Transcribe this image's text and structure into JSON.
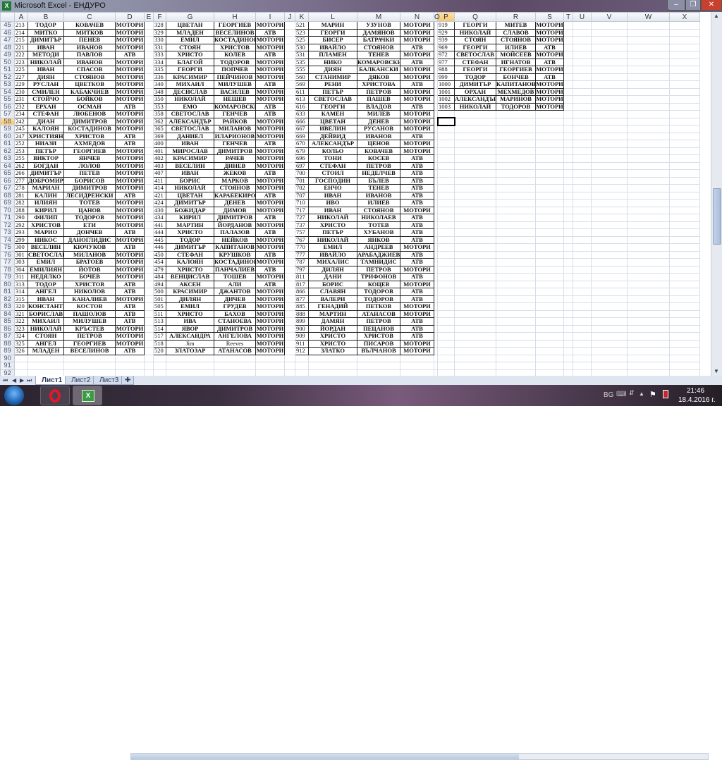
{
  "window": {
    "app_icon": "excel-icon",
    "title": "Microsoft Excel - ЕНДУРО",
    "minimize": "–",
    "restore": "❐",
    "close": "✕"
  },
  "sheet": {
    "columns": [
      "A",
      "B",
      "C",
      "D",
      "E",
      "F",
      "G",
      "H",
      "I",
      "J",
      "K",
      "L",
      "M",
      "N",
      "O",
      "P",
      "Q",
      "R",
      "S",
      "T",
      "U",
      "V",
      "W",
      "X"
    ],
    "first_row": 45,
    "last_row": 92,
    "selected_cell": "P58",
    "groups": [
      {
        "columns": [
          "A",
          "B",
          "C",
          "D"
        ],
        "rows": [
          [
            "213",
            "ТОДОР",
            "КОВАЧЕВ",
            "МОТОРИ"
          ],
          [
            "214",
            "МИТКО",
            "МИТКОВ",
            "МОТОРИ"
          ],
          [
            "215",
            "ДИМИТЪР",
            "ПЕНЕВ",
            "МОТОРИ"
          ],
          [
            "221",
            "ИВАН",
            "ИВАНОВ",
            "МОТОРИ"
          ],
          [
            "222",
            "МЕТОДИ",
            "ПАВЛОВ",
            "АТВ"
          ],
          [
            "223",
            "НИКОЛАЙ",
            "ИВАНОВ",
            "МОТОРИ"
          ],
          [
            "225",
            "ИВАН",
            "СПАСОВ",
            "МОТОРИ"
          ],
          [
            "227",
            "ДИЯН",
            "СТОЯНОВ",
            "МОТОРИ"
          ],
          [
            "229",
            "РУСЛАН",
            "ЦВЕТКОВ",
            "МОТОРИ"
          ],
          [
            "230",
            "СМИЛЕН",
            "КАБАКЧИЕВ",
            "МОТОРИ"
          ],
          [
            "231",
            "СТОЙЧО",
            "БОЙКОВ",
            "МОТОРИ"
          ],
          [
            "232",
            "ЕРХАН",
            "ОСМАН",
            "АТВ"
          ],
          [
            "234",
            "СТЕФАН",
            "ЛЮБЕНОВ",
            "МОТОРИ"
          ],
          [
            "242",
            "ДИАН",
            "ДИМИТРОВ",
            "МОТОРИ"
          ],
          [
            "245",
            "КАЛОЯН",
            "КОСТАДИНОВ",
            "МОТОРИ"
          ],
          [
            "247",
            "ХРИСТИЯН",
            "ХРИСТОВ",
            "АТВ"
          ],
          [
            "252",
            "НИАЗИ",
            "АХМЕДОВ",
            "АТВ"
          ],
          [
            "253",
            "ПЕТЪР",
            "ГЕОРГИЕВ",
            "МОТОРИ"
          ],
          [
            "255",
            "ВИКТОР",
            "ЯНЧЕВ",
            "МОТОРИ"
          ],
          [
            "262",
            "БОГДАН",
            "ЛОЛОВ",
            "МОТОРИ"
          ],
          [
            "266",
            "ДИМИТЪР",
            "ПЕТЕВ",
            "МОТОРИ"
          ],
          [
            "277",
            "ДОБРОМИР",
            "БОРИСОВ",
            "МОТОРИ"
          ],
          [
            "278",
            "МАРИАН",
            "ДИМИТРОВ",
            "МОТОРИ"
          ],
          [
            "281",
            "КАЛИН",
            "ЛЕСИДРЕНСКИ",
            "АТВ"
          ],
          [
            "282",
            "ИЛИЯН",
            "ТОТЕВ",
            "МОТОРИ"
          ],
          [
            "288",
            "КИРИЛ",
            "ЦАНОВ",
            "МОТОРИ"
          ],
          [
            "290",
            "ФИЛИП",
            "ТОДОРОВ",
            "МОТОРИ"
          ],
          [
            "292",
            "ХРИСТОВ",
            "ЕТИ",
            "МОТОРИ"
          ],
          [
            "293",
            "МАРИО",
            "ДОНЧЕВ",
            "АТВ"
          ],
          [
            "299",
            "НИКОС",
            "ДАНОГЛИДИС",
            "МОТОРИ"
          ],
          [
            "300",
            "ВЕСЕЛИН",
            "КЮЧУКОВ",
            "АТВ"
          ],
          [
            "301",
            "СВЕТОСЛАВ",
            "МИЛАНОВ",
            "МОТОРИ"
          ],
          [
            "303",
            "ЕМИЛ",
            "БРАТОЕВ",
            "МОТОРИ"
          ],
          [
            "304",
            "ЕМИЛИЯН",
            "ЙОТОВ",
            "МОТОРИ"
          ],
          [
            "311",
            "НЕДЯЛКО",
            "БОЧЕВ",
            "МОТОРИ"
          ],
          [
            "313",
            "ТОДОР",
            "ХРИСТОВ",
            "АТВ"
          ],
          [
            "314",
            "АНГЕЛ",
            "НИКОЛОВ",
            "АТВ"
          ],
          [
            "315",
            "ИВАН",
            "КАНАЛИЕВ",
            "МОТОРИ"
          ],
          [
            "320",
            "КОНСТАНТИН",
            "КОСТОВ",
            "АТВ"
          ],
          [
            "321",
            "БОРИСЛАВ",
            "ПАШОЛОВ",
            "АТВ"
          ],
          [
            "322",
            "МИХАИЛ",
            "МИЛУШЕВ",
            "АТВ"
          ],
          [
            "323",
            "НИКОЛАЙ",
            "КРЪСТЕВ",
            "МОТОРИ"
          ],
          [
            "324",
            "СТОЯН",
            "ПЕТРОВ",
            "МОТОРИ"
          ],
          [
            "325",
            "АНГЕЛ",
            "ГЕОРГИЕВ",
            "МОТОРИ"
          ],
          [
            "326",
            "МЛАДЕН",
            "ВЕСЕЛИНОВ",
            "АТВ"
          ]
        ]
      },
      {
        "columns": [
          "F",
          "G",
          "H",
          "I"
        ],
        "rows": [
          [
            "328",
            "ЦВЕТАН",
            "ГЕОРГИЕВ",
            "МОТОРИ"
          ],
          [
            "329",
            "МЛАДЕН",
            "ВЕСЕЛИНОВ",
            "АТВ"
          ],
          [
            "330",
            "ЕМИЛ",
            "КОСТАДИНОВ",
            "МОТОРИ"
          ],
          [
            "331",
            "СТОЯН",
            "ХРИСТОВ",
            "МОТОРИ"
          ],
          [
            "333",
            "ХРИСТО",
            "КОЛЕВ",
            "АТВ"
          ],
          [
            "334",
            "БЛАГОЙ",
            "ТОДОРОВ",
            "МОТОРИ"
          ],
          [
            "335",
            "ГЕОРГИ",
            "ПОПЧЕВ",
            "МОТОРИ"
          ],
          [
            "336",
            "КРАСИМИР",
            "ПЕЙЧИНОВ",
            "МОТОРИ"
          ],
          [
            "340",
            "МИХАИЛ",
            "МИЛУШЕВ",
            "АТВ"
          ],
          [
            "348",
            "ДЕСИСЛАВ",
            "ВАСИЛЕВ",
            "МОТОРИ"
          ],
          [
            "350",
            "НИКОЛАЙ",
            "НЕШЕВ",
            "МОТОРИ"
          ],
          [
            "353",
            "ЕМО",
            "КОМАРОВСКИ",
            "АТВ"
          ],
          [
            "358",
            "СВЕТОСЛАВ",
            "ГЕНЧЕВ",
            "АТВ"
          ],
          [
            "362",
            "АЛЕКСАНДЪР",
            "РАЙКОВ",
            "МОТОРИ"
          ],
          [
            "365",
            "СВЕТОСЛАВ",
            "МИЛАНОВ",
            "МОТОРИ"
          ],
          [
            "369",
            "ДАНИЕЛ",
            "ИЛАРИОНОВ",
            "МОТОРИ"
          ],
          [
            "400",
            "ИВАН",
            "ГЕНЧЕВ",
            "АТВ"
          ],
          [
            "401",
            "МИРОСЛАВ",
            "ДИМИТРОВ",
            "МОТОРИ"
          ],
          [
            "402",
            "КРАСИМИР",
            "РАЧЕВ",
            "МОТОРИ"
          ],
          [
            "403",
            "ВЕСЕЛИН",
            "ДИНЕВ",
            "МОТОРИ"
          ],
          [
            "407",
            "ИВАН",
            "ЖЕКОВ",
            "АТВ"
          ],
          [
            "411",
            "БОРИС",
            "МАРКОВ",
            "МОТОРИ"
          ],
          [
            "414",
            "НИКОЛАЙ",
            "СТОЯНОВ",
            "МОТОРИ"
          ],
          [
            "421",
            "ЦВЕТАН",
            "КАРАБЕКИРОВ",
            "АТВ"
          ],
          [
            "424",
            "ДИМИТЪР",
            "ДЕНЕВ",
            "МОТОРИ"
          ],
          [
            "430",
            "БОЖИДАР",
            "ДИМОВ",
            "МОТОРИ"
          ],
          [
            "434",
            "КИРИЛ",
            "ДИМИТРОВ",
            "АТВ"
          ],
          [
            "441",
            "МАРТИН",
            "ЙОРДАНОВ",
            "МОТОРИ"
          ],
          [
            "444",
            "ХРИСТО",
            "ПАЛАЗОВ",
            "АТВ"
          ],
          [
            "445",
            "ТОДОР",
            "НЕЙКОВ",
            "МОТОРИ"
          ],
          [
            "446",
            "ДИМИТЪР",
            "КАПИТАНОВ",
            "МОТОРИ"
          ],
          [
            "450",
            "СТЕФАН",
            "КРУШКОВ",
            "АТВ"
          ],
          [
            "454",
            "КАЛОЯН",
            "КОСТАДИНОВ",
            "МОТОРИ"
          ],
          [
            "479",
            "ХРИСТО",
            "ПАНЧАЛИЕВ",
            "АТВ"
          ],
          [
            "484",
            "ВЕНЦИСЛАВ",
            "ТОШЕВ",
            "МОТОРИ"
          ],
          [
            "494",
            "АКСЕН",
            "АЛИ",
            "АТВ"
          ],
          [
            "500",
            "КРАСИМИР",
            "ДЖАНТОВ",
            "МОТОРИ"
          ],
          [
            "501",
            "ДИЛЯН",
            "ДИЧЕВ",
            "МОТОРИ"
          ],
          [
            "505",
            "ЕМИЛ",
            "ГРУДЕВ",
            "МОТОРИ"
          ],
          [
            "511",
            "ХРИСТО",
            "БАХОВ",
            "МОТОРИ"
          ],
          [
            "513",
            "ИВА",
            "СТАНОЕВА",
            "МОТОРИ"
          ],
          [
            "514",
            "ЯВОР",
            "ДИМИТРОВ",
            "МОТОРИ"
          ],
          [
            "517",
            "АЛЕКСАНДРА",
            "АНГЕЛОВА",
            "МОТОРИ"
          ],
          [
            "518",
            "Jim",
            "Reeves",
            "МОТОРИ"
          ],
          [
            "520",
            "ЗЛАТОЗАР",
            "АТАНАСОВ",
            "МОТОРИ"
          ]
        ]
      },
      {
        "columns": [
          "K",
          "L",
          "M",
          "N"
        ],
        "rows": [
          [
            "521",
            "МАРИН",
            "УЗУНОВ",
            "МОТОРИ"
          ],
          [
            "523",
            "ГЕОРГИ",
            "ДАМЯНОВ",
            "МОТОРИ"
          ],
          [
            "525",
            "БИСЕР",
            "БАТРАЧКИ",
            "МОТОРИ"
          ],
          [
            "530",
            "ИВАЙЛО",
            "СТОЯНОВ",
            "АТВ"
          ],
          [
            "531",
            "ПЛАМЕН",
            "ТЕНЕВ",
            "МОТОРИ"
          ],
          [
            "535",
            "НИКО",
            "КОМАРОВСКИ",
            "АТВ"
          ],
          [
            "555",
            "ДИЯН",
            "БАЛКАНСКИ",
            "МОТОРИ"
          ],
          [
            "560",
            "СТАНИМИР",
            "ДЯКОВ",
            "МОТОРИ"
          ],
          [
            "569",
            "РЕНИ",
            "ХРИСТОВА",
            "АТВ"
          ],
          [
            "611",
            "ПЕТЪР",
            "ПЕТРОВ",
            "МОТОРИ"
          ],
          [
            "613",
            "СВЕТОСЛАВ",
            "ПАШЕВ",
            "МОТОРИ"
          ],
          [
            "616",
            "ГЕОРГИ",
            "ВЛАДОВ",
            "АТВ"
          ],
          [
            "633",
            "КАМЕН",
            "МИЛЕВ",
            "МОТОРИ"
          ],
          [
            "666",
            "ЦВЕТАН",
            "ДЕНЕВ",
            "МОТОРИ"
          ],
          [
            "667",
            "ИВЕЛИН",
            "РУСАНОВ",
            "МОТОРИ"
          ],
          [
            "669",
            "ДЕЙВИД",
            "ИВАНОВ",
            "АТВ"
          ],
          [
            "670",
            "АЛЕКСАНДЪР",
            "ЦЕНОВ",
            "МОТОРИ"
          ],
          [
            "679",
            "КОЛЬО",
            "КОВАЧЕВ",
            "МОТОРИ"
          ],
          [
            "696",
            "ТОНИ",
            "КОСЕВ",
            "АТВ"
          ],
          [
            "697",
            "СТЕФАН",
            "ПЕТРОВ",
            "АТВ"
          ],
          [
            "700",
            "СТОИЛ",
            "НЕДЕЛЧЕВ",
            "АТВ"
          ],
          [
            "701",
            "ГОСПОДИН",
            "БЪЛЕВ",
            "АТВ"
          ],
          [
            "702",
            "ЕНЧО",
            "ТЕНЕВ",
            "АТВ"
          ],
          [
            "707",
            "ИВАН",
            "ИВАНОВ",
            "АТВ"
          ],
          [
            "710",
            "ИВО",
            "ИЛИЕВ",
            "АТВ"
          ],
          [
            "717",
            "ИВАН",
            "СТОЯНОВ",
            "МОТОРИ"
          ],
          [
            "727",
            "НИКОЛАЙ",
            "НИКОЛАЕВ",
            "АТВ"
          ],
          [
            "737",
            "ХРИСТО",
            "ТОТЕВ",
            "АТВ"
          ],
          [
            "757",
            "ПЕТЪР",
            "ХУБАНОВ",
            "АТВ"
          ],
          [
            "767",
            "НИКОЛАЙ",
            "ЯНКОВ",
            "АТВ"
          ],
          [
            "770",
            "ЕМИЛ",
            "АНДРЕЕВ",
            "МОТОРИ"
          ],
          [
            "777",
            "ИВАЙЛО",
            "АРАБАДЖИЕВ",
            "АТВ"
          ],
          [
            "787",
            "МИХАЛИС",
            "ТАМНИДИС",
            "АТВ"
          ],
          [
            "797",
            "ДИЛЯН",
            "ПЕТРОВ",
            "МОТОРИ"
          ],
          [
            "811",
            "ДАНИ",
            "ТРИФОНОВ",
            "АТВ"
          ],
          [
            "817",
            "БОРИС",
            "КОЦЕВ",
            "МОТОРИ"
          ],
          [
            "866",
            "СЛАВЯН",
            "ТОДОРОВ",
            "АТВ"
          ],
          [
            "877",
            "ВАЛЕРИ",
            "ТОДОРОВ",
            "АТВ"
          ],
          [
            "885",
            "ГЕНАДИЙ",
            "ПЕТКОВ",
            "МОТОРИ"
          ],
          [
            "888",
            "МАРТИН",
            "АТАНАСОВ",
            "МОТОРИ"
          ],
          [
            "899",
            "ДАМЯН",
            "ПЕТРОВ",
            "АТВ"
          ],
          [
            "900",
            "ЙОРДАН",
            "ПЕЦАНОВ",
            "АТВ"
          ],
          [
            "909",
            "ХРИСТО",
            "ХРИСТОВ",
            "АТВ"
          ],
          [
            "911",
            "ХРИСТО",
            "ПИСАРОВ",
            "МОТОРИ"
          ],
          [
            "912",
            "ЗЛАТКО",
            "ВЪЛЧАНОВ",
            "МОТОРИ"
          ]
        ]
      },
      {
        "columns": [
          "P",
          "Q",
          "R",
          "S"
        ],
        "rows": [
          [
            "919",
            "ГЕОРГИ",
            "МИТЕВ",
            "МОТОРИ"
          ],
          [
            "929",
            "НИКОЛАЙ",
            "СЛАВОВ",
            "МОТОРИ"
          ],
          [
            "939",
            "СТОЯН",
            "СТОЯНОВ",
            "МОТОРИ"
          ],
          [
            "969",
            "ГЕОРГИ",
            "ИЛИЕВ",
            "АТВ"
          ],
          [
            "972",
            "СВЕТОСЛАВ",
            "МОЙСЕЕВ",
            "МОТОРИ"
          ],
          [
            "977",
            "СТЕФАН",
            "ИГНАТОВ",
            "АТВ"
          ],
          [
            "988",
            "ГЕОРГИ",
            "ГЕОРГИЕВ",
            "МОТОРИ"
          ],
          [
            "999",
            "ТОДОР",
            "БОНЧЕВ",
            "АТВ"
          ],
          [
            "1000",
            "ДИМИТЪР",
            "КАПИТАНОВ",
            "МОТОРИ"
          ],
          [
            "1001",
            "ОРХАН",
            "МЕХМЕДОВ",
            "МОТОРИ"
          ],
          [
            "1002",
            "АЛЕКСАНДЪР",
            "МАРИНОВ",
            "МОТОРИ"
          ],
          [
            "1003",
            "НИКОЛАЙ",
            "ТОДОРОВ",
            "МОТОРИ"
          ]
        ]
      }
    ]
  },
  "sheet_tabs": [
    {
      "label": "Лист1",
      "active": true
    },
    {
      "label": "Лист2"
    },
    {
      "label": "Лист3"
    }
  ],
  "sheet_nav": [
    "⏮",
    "◀",
    "▶",
    "⏭"
  ],
  "taskbar": {
    "items": [
      "start-orb",
      "opera",
      "excel"
    ],
    "tray": {
      "language": "BG",
      "time": "21:46",
      "date": "18.4.2016 г."
    }
  },
  "colors": {
    "selected_header": "#f8c56a",
    "close_button": "#c8402e",
    "excel_green": "#1f7a35"
  }
}
